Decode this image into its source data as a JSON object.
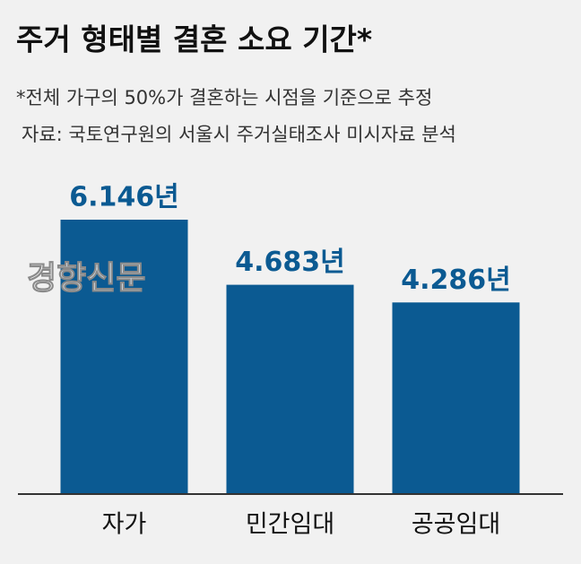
{
  "chart_data": {
    "type": "bar",
    "title": "주거 형태별 결혼 소요 기간*",
    "subtitle": [
      "*전체 가구의 50%가 결혼하는 시점을 기준으로 추정",
      "자료: 국토연구원의 서울시 주거실태조사 미시자료 분석"
    ],
    "watermark": "경향신문",
    "categories": [
      "자가",
      "민간임대",
      "공공임대"
    ],
    "values": [
      6.146,
      4.683,
      4.286
    ],
    "value_labels": [
      "6.146년",
      "4.683년",
      "4.286년"
    ],
    "color": "#0b5a92"
  }
}
